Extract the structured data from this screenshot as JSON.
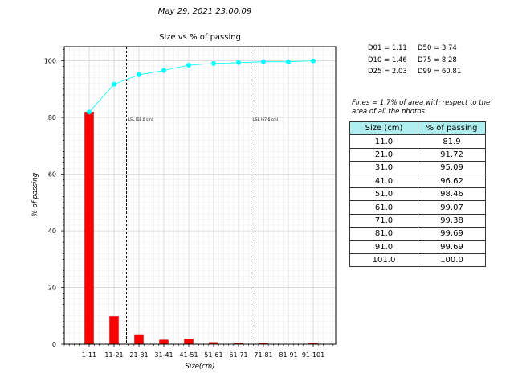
{
  "timestamp": "May 29, 2021 23:00:09",
  "stats": {
    "d01": "D01 = 1.11",
    "d50": "D50 = 3.74",
    "d10": "D10 = 1.46",
    "d75": "D75 = 8.28",
    "d25": "D25 = 2.03",
    "d99": "D99 = 60.81"
  },
  "fines_note": "Fines = 1.7% of area with respect to the area of all the photos",
  "table": {
    "headers": [
      "Size (cm)",
      "% of passing"
    ],
    "rows": [
      [
        "11.0",
        "81.9"
      ],
      [
        "21.0",
        "91.72"
      ],
      [
        "31.0",
        "95.09"
      ],
      [
        "41.0",
        "96.62"
      ],
      [
        "51.0",
        "98.46"
      ],
      [
        "61.0",
        "99.07"
      ],
      [
        "71.0",
        "99.38"
      ],
      [
        "81.0",
        "99.69"
      ],
      [
        "91.0",
        "99.69"
      ],
      [
        "101.0",
        "100.0"
      ]
    ]
  },
  "chart_data": {
    "type": "bar",
    "title": "Size vs % of passing",
    "xlabel": "Size(cm)",
    "ylabel": "% of passing",
    "ylim": [
      0,
      105
    ],
    "yticks": [
      0,
      20,
      40,
      60,
      80,
      100
    ],
    "grid": true,
    "categories": [
      "1-11",
      "11-21",
      "21-31",
      "31-41",
      "41-51",
      "51-61",
      "61-71",
      "71-81",
      "81-91",
      "91-101"
    ],
    "bars": [
      81.9,
      9.8,
      3.4,
      1.5,
      1.8,
      0.6,
      0.3,
      0.3,
      0.0,
      0.3
    ],
    "bar_color": "#ff0000",
    "line": [
      81.9,
      91.72,
      95.09,
      96.62,
      98.46,
      99.07,
      99.38,
      99.69,
      99.69,
      100.0
    ],
    "line_color": "#00ffff",
    "vlines": [
      {
        "position": 1.5,
        "label": "LSL (18.0 cm)"
      },
      {
        "position": 6.5,
        "label": "USL (67.6 cm)"
      }
    ]
  }
}
